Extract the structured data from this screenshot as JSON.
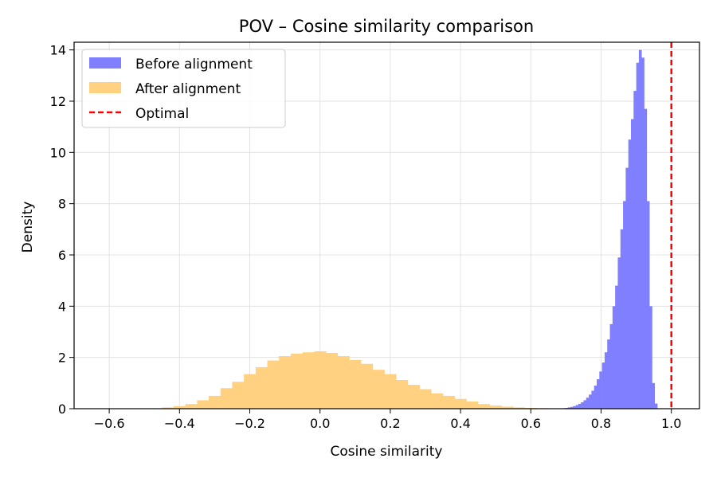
{
  "chart_data": {
    "type": "histogram",
    "title": "POV – Cosine similarity comparison",
    "xlabel": "Cosine similarity",
    "ylabel": "Density",
    "xlim": [
      -0.7,
      1.08
    ],
    "ylim": [
      0,
      14.3
    ],
    "xticks": [
      -0.6,
      -0.4,
      -0.2,
      0.0,
      0.2,
      0.4,
      0.6,
      0.8,
      1.0
    ],
    "xtick_labels": [
      "−0.6",
      "−0.4",
      "−0.2",
      "0.0",
      "0.2",
      "0.4",
      "0.6",
      "0.8",
      "1.0"
    ],
    "yticks": [
      0,
      2,
      4,
      6,
      8,
      10,
      12,
      14
    ],
    "ytick_labels": [
      "0",
      "2",
      "4",
      "6",
      "8",
      "10",
      "12",
      "14"
    ],
    "grid": true,
    "legend_position": "top-left",
    "series": [
      {
        "name": "Before alignment",
        "kind": "histogram",
        "color": "#7f7fff",
        "bin_edges": [
          0.69,
          0.6975,
          0.705,
          0.7125,
          0.72,
          0.7275,
          0.735,
          0.7425,
          0.75,
          0.7575,
          0.765,
          0.7725,
          0.78,
          0.7875,
          0.795,
          0.8025,
          0.81,
          0.8175,
          0.825,
          0.8325,
          0.84,
          0.8475,
          0.855,
          0.8625,
          0.87,
          0.8775,
          0.885,
          0.8925,
          0.9,
          0.9075,
          0.915,
          0.9225,
          0.93,
          0.9375,
          0.945,
          0.9525,
          0.96
        ],
        "values": [
          0.02,
          0.03,
          0.05,
          0.07,
          0.1,
          0.14,
          0.19,
          0.25,
          0.33,
          0.43,
          0.55,
          0.7,
          0.9,
          1.15,
          1.45,
          1.8,
          2.2,
          2.7,
          3.3,
          4.0,
          4.8,
          5.9,
          7.0,
          8.1,
          9.4,
          10.5,
          11.3,
          12.4,
          13.5,
          14.0,
          13.7,
          11.7,
          8.1,
          4.0,
          1.0,
          0.2
        ]
      },
      {
        "name": "After alignment",
        "kind": "histogram",
        "color": "#ffd180",
        "bin_edges": [
          -0.45,
          -0.4167,
          -0.3833,
          -0.35,
          -0.3167,
          -0.2833,
          -0.25,
          -0.2167,
          -0.1833,
          -0.15,
          -0.1167,
          -0.0833,
          -0.05,
          -0.0167,
          0.0167,
          0.05,
          0.0833,
          0.1167,
          0.15,
          0.1833,
          0.2167,
          0.25,
          0.2833,
          0.3167,
          0.35,
          0.3833,
          0.4167,
          0.45,
          0.4833,
          0.5167,
          0.55,
          0.5833,
          0.6167,
          0.65,
          0.6833,
          0.7167
        ],
        "values": [
          0.05,
          0.1,
          0.18,
          0.33,
          0.5,
          0.8,
          1.05,
          1.35,
          1.62,
          1.88,
          2.05,
          2.15,
          2.2,
          2.24,
          2.18,
          2.05,
          1.9,
          1.75,
          1.52,
          1.35,
          1.12,
          0.93,
          0.76,
          0.6,
          0.5,
          0.38,
          0.28,
          0.18,
          0.12,
          0.08,
          0.05,
          0.03,
          0.02,
          0.01,
          0.005
        ]
      },
      {
        "name": "Optimal",
        "kind": "vline",
        "color": "#ff0000",
        "x": 1.0,
        "style": "dashed"
      }
    ]
  }
}
